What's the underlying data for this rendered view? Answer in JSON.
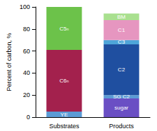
{
  "chart_data": {
    "type": "bar",
    "stacked": true,
    "y_label": "Percent of carbon, %",
    "categories": [
      "Substrates",
      "Products"
    ],
    "ylim": [
      0,
      100
    ],
    "yticks": [
      0,
      20,
      40,
      60,
      80,
      100
    ],
    "series": [
      {
        "name": "YE",
        "color": "#5b9bd5",
        "values": [
          5,
          null
        ]
      },
      {
        "name": "C6ₙ",
        "color": "#a3214d",
        "values": [
          56,
          null
        ]
      },
      {
        "name": "C5ₙ",
        "color": "#6cc24a",
        "values": [
          39,
          null
        ]
      },
      {
        "name": "sugar",
        "color": "#6a4fc4",
        "values": [
          null,
          17
        ]
      },
      {
        "name": "SG C2",
        "color": "#5b9bd5",
        "values": [
          null,
          3
        ]
      },
      {
        "name": "C2",
        "color": "#1f4fa0",
        "values": [
          null,
          46
        ]
      },
      {
        "name": "C3",
        "color": "#4ea5d9",
        "values": [
          null,
          4
        ]
      },
      {
        "name": "C1",
        "color": "#e696c0",
        "values": [
          null,
          18
        ]
      },
      {
        "name": "BM",
        "color": "#a9e08f",
        "values": [
          null,
          6
        ]
      }
    ]
  }
}
